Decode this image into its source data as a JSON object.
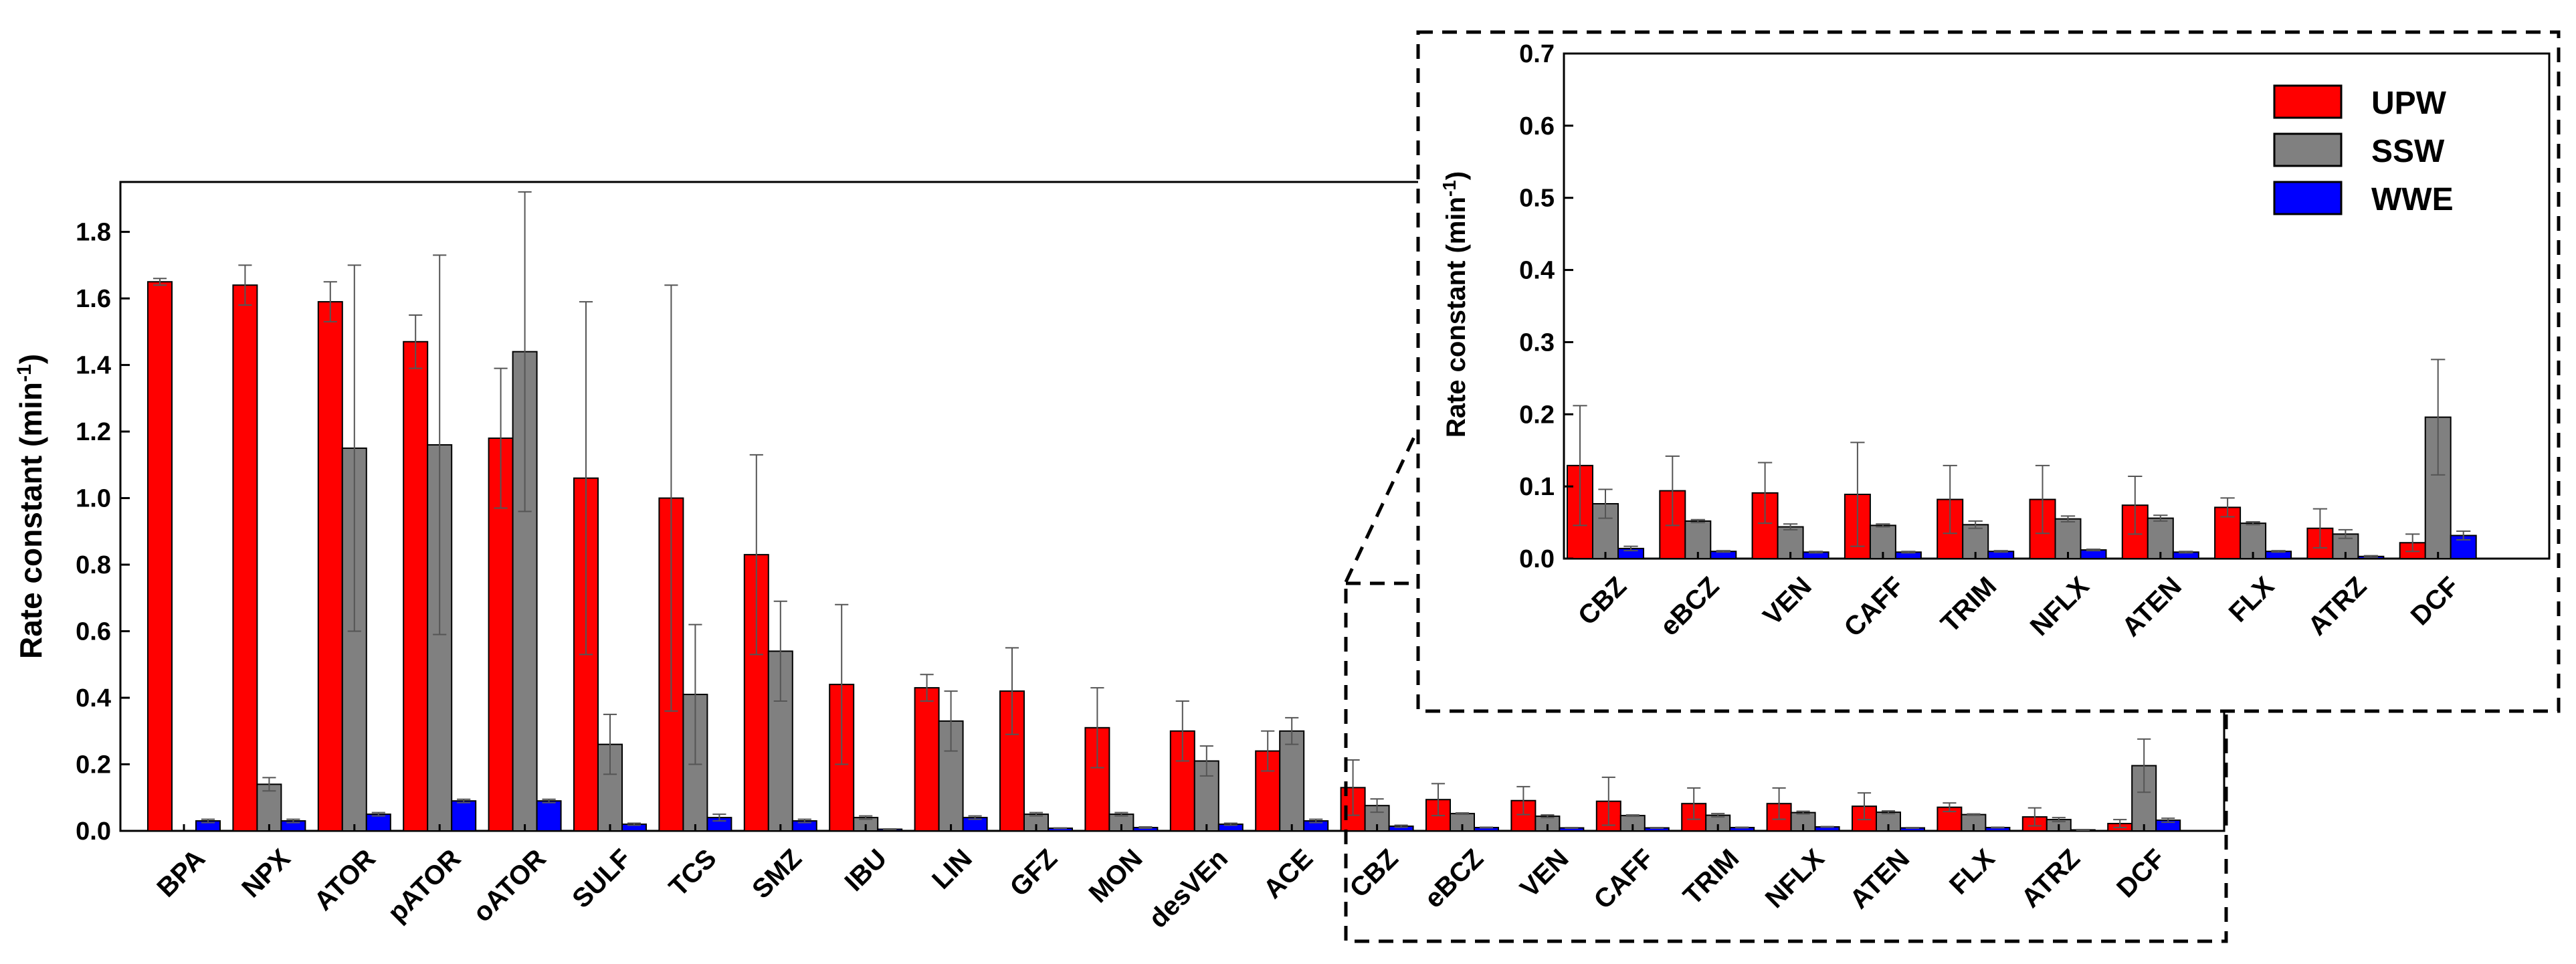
{
  "colors": {
    "UPW": "#ff0000",
    "SSW": "#808080",
    "WWE": "#0000ff",
    "stroke": "#000000",
    "error": "#555555"
  },
  "chart_data": [
    {
      "name": "main",
      "type": "bar",
      "ylabel": "Rate constant (min",
      "ylabel_sup": "-1",
      "ylabel_close": ")",
      "ylim": [
        0,
        1.95
      ],
      "yticks": [
        "0.0",
        "0.2",
        "0.4",
        "0.6",
        "0.8",
        "1.0",
        "1.2",
        "1.4",
        "1.6",
        "1.8"
      ],
      "categories": [
        "BPA",
        "NPX",
        "ATOR",
        "pATOR",
        "oATOR",
        "SULF",
        "TCS",
        "SMZ",
        "IBU",
        "LIN",
        "GFZ",
        "MON",
        "desVEn",
        "ACE",
        "CBZ",
        "eBCZ",
        "VEN",
        "CAFF",
        "TRIM",
        "NFLX",
        "ATEN",
        "FLX",
        "ATRZ",
        "DCF"
      ],
      "series": [
        {
          "name": "UPW",
          "values": [
            1.65,
            1.64,
            1.59,
            1.47,
            1.18,
            1.06,
            1.0,
            0.83,
            0.44,
            0.43,
            0.42,
            0.31,
            0.3,
            0.24,
            0.13,
            0.094,
            0.091,
            0.089,
            0.082,
            0.082,
            0.074,
            0.071,
            0.042,
            0.022
          ],
          "errors": [
            0.01,
            0.06,
            0.06,
            0.08,
            0.21,
            0.53,
            0.64,
            0.3,
            0.24,
            0.04,
            0.13,
            0.12,
            0.09,
            0.06,
            0.083,
            0.048,
            0.042,
            0.072,
            0.047,
            0.047,
            0.04,
            0.013,
            0.027,
            0.012
          ]
        },
        {
          "name": "SSW",
          "values": [
            0,
            0.14,
            1.15,
            1.16,
            1.44,
            0.26,
            0.41,
            0.54,
            0.04,
            0.33,
            0.05,
            0.05,
            0.21,
            0.3,
            0.076,
            0.052,
            0.044,
            0.046,
            0.047,
            0.055,
            0.056,
            0.049,
            0.034,
            0.196
          ],
          "errors": [
            0,
            0.02,
            0.55,
            0.57,
            0.48,
            0.09,
            0.21,
            0.15,
            0.005,
            0.09,
            0.005,
            0.005,
            0.045,
            0.04,
            0.02,
            0.002,
            0.004,
            0.002,
            0.005,
            0.004,
            0.004,
            0.002,
            0.006,
            0.08
          ]
        },
        {
          "name": "WWE",
          "values": [
            0.03,
            0.03,
            0.05,
            0.09,
            0.09,
            0.02,
            0.04,
            0.03,
            0.005,
            0.04,
            0.008,
            0.01,
            0.02,
            0.03,
            0.014,
            0.01,
            0.009,
            0.009,
            0.01,
            0.012,
            0.009,
            0.01,
            0.003,
            0.032
          ],
          "errors": [
            0.005,
            0.005,
            0.005,
            0.005,
            0.005,
            0.003,
            0.01,
            0.005,
            0.001,
            0.005,
            0.001,
            0.002,
            0.003,
            0.005,
            0.003,
            0.001,
            0.001,
            0.001,
            0.001,
            0.001,
            0.001,
            0.001,
            0.001,
            0.006
          ]
        }
      ]
    },
    {
      "name": "inset",
      "type": "bar",
      "ylabel": "Rate constant (min",
      "ylabel_sup": "-1",
      "ylabel_close": ")",
      "ylim": [
        0,
        0.7
      ],
      "yticks": [
        "0.0",
        "0.1",
        "0.2",
        "0.3",
        "0.4",
        "0.5",
        "0.6",
        "0.7"
      ],
      "categories": [
        "CBZ",
        "eBCZ",
        "VEN",
        "CAFF",
        "TRIM",
        "NFLX",
        "ATEN",
        "FLX",
        "ATRZ",
        "DCF"
      ],
      "legend": [
        "UPW",
        "SSW",
        "WWE"
      ],
      "legend_position": "top-right",
      "series": [
        {
          "name": "UPW",
          "values": [
            0.129,
            0.094,
            0.091,
            0.089,
            0.082,
            0.082,
            0.074,
            0.071,
            0.042,
            0.022
          ],
          "errors": [
            0.083,
            0.048,
            0.042,
            0.072,
            0.047,
            0.047,
            0.04,
            0.013,
            0.027,
            0.012
          ]
        },
        {
          "name": "SSW",
          "values": [
            0.076,
            0.052,
            0.044,
            0.046,
            0.047,
            0.055,
            0.056,
            0.049,
            0.034,
            0.196
          ],
          "errors": [
            0.02,
            0.002,
            0.004,
            0.002,
            0.005,
            0.004,
            0.004,
            0.002,
            0.006,
            0.08
          ]
        },
        {
          "name": "WWE",
          "values": [
            0.014,
            0.01,
            0.009,
            0.009,
            0.01,
            0.012,
            0.009,
            0.01,
            0.003,
            0.032
          ],
          "errors": [
            0.003,
            0.001,
            0.001,
            0.001,
            0.001,
            0.001,
            0.001,
            0.001,
            0.001,
            0.006
          ]
        }
      ]
    }
  ]
}
